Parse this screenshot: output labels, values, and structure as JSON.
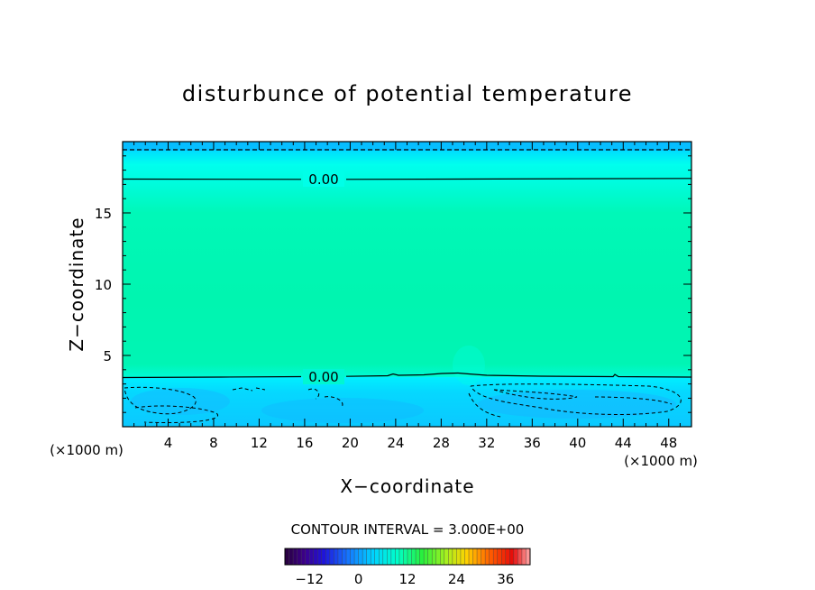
{
  "chart_data": {
    "type": "heatmap",
    "title": "disturbunce of potential temperature",
    "xlabel": "X−coordinate",
    "ylabel": "Z−coordinate",
    "x_unit": "(×1000 m)",
    "y_unit": "(×1000 m)",
    "xlim": [
      0,
      50
    ],
    "ylim": [
      0,
      20
    ],
    "x_ticks": [
      4,
      8,
      12,
      16,
      20,
      24,
      28,
      32,
      36,
      40,
      44,
      48
    ],
    "y_ticks": [
      5,
      10,
      15
    ],
    "contour_labels": [
      {
        "text": "0.00",
        "x": 17.5,
        "z": 17.4
      },
      {
        "text": "0.00",
        "x": 17.5,
        "z": 3.5
      }
    ],
    "contour_interval_text": "CONTOUR INTERVAL = 3.000E+00",
    "colorbar": {
      "min": -18,
      "max": 42,
      "ticks": [
        "−12",
        "0",
        "12",
        "24",
        "36"
      ],
      "tick_values": [
        -12,
        0,
        12,
        24,
        36
      ]
    },
    "colors": {
      "upper_band": "#00c8ff",
      "cyan_band": "#00ffee",
      "mid_green": "#00f5b0",
      "lower_band": "#05cfff"
    }
  }
}
